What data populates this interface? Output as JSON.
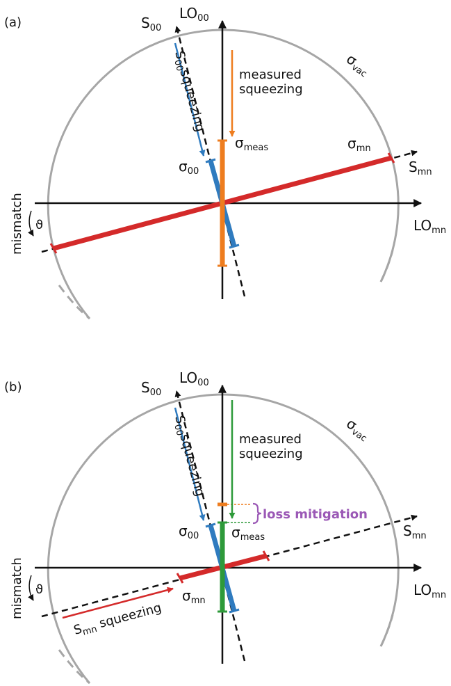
{
  "panels": [
    {
      "id": "a",
      "panel_label": "(a)",
      "lo00": {
        "base": "LO",
        "sub": "00"
      },
      "s00": {
        "base": "S",
        "sub": "00"
      },
      "smn": {
        "base": "S",
        "sub": "mn"
      },
      "lomn": {
        "base": "LO",
        "sub": "mn"
      },
      "sigma_vac": {
        "base": "σ",
        "sub": "vac"
      },
      "sigma_meas": {
        "base": "σ",
        "sub": "meas"
      },
      "sigma_00": {
        "base": "σ",
        "sub": "00"
      },
      "sigma_mn": {
        "base": "σ",
        "sub": "mn"
      },
      "measured_line1": "measured",
      "measured_line2": "squeezing",
      "s00_squeezing": {
        "base": "S",
        "sub": "00",
        "rest": "squeezing"
      },
      "mismatch": "mismatch",
      "theta": "ϑ"
    },
    {
      "id": "b",
      "panel_label": "(b)",
      "lo00": {
        "base": "LO",
        "sub": "00"
      },
      "s00": {
        "base": "S",
        "sub": "00"
      },
      "smn": {
        "base": "S",
        "sub": "mn"
      },
      "lomn": {
        "base": "LO",
        "sub": "mn"
      },
      "sigma_vac": {
        "base": "σ",
        "sub": "vac"
      },
      "sigma_meas": {
        "base": "σ",
        "sub": "meas"
      },
      "sigma_00": {
        "base": "σ",
        "sub": "00"
      },
      "sigma_mn": {
        "base": "σ",
        "sub": "mn"
      },
      "measured_line1": "measured",
      "measured_line2": "squeezing",
      "s00_squeezing": {
        "base": "S",
        "sub": "00",
        "rest": "squeezing"
      },
      "smn_squeezing": {
        "base": "S",
        "sub": "mn",
        "rest": " squeezing"
      },
      "loss_mitigation": "loss mitigation",
      "mismatch": "mismatch",
      "theta": "ϑ"
    }
  ],
  "colors": {
    "axis": "#111111",
    "circle": "#a6a6a6",
    "s00": "#2f7bbf",
    "smn": "#d42a2a",
    "measured_a": "#ee7d1f",
    "measured_b": "#2e9a3a",
    "loss": "#9b59b6"
  }
}
